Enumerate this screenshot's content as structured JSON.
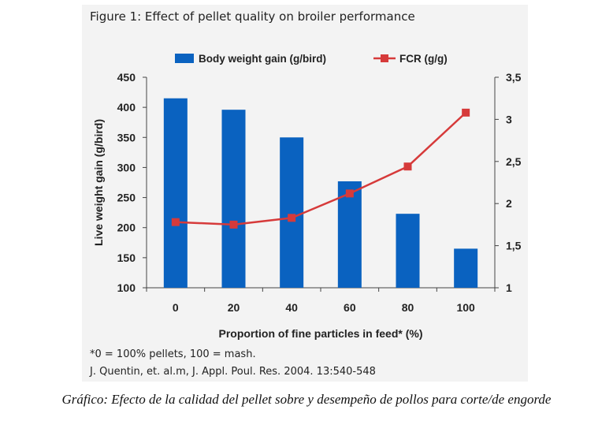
{
  "figure_title": "Figure 1: Effect of pellet quality on broiler performance",
  "footnote": "*0 = 100% pellets, 100 = mash.",
  "reference": "J. Quentin, et. al.m, J. Appl. Poul. Res. 2004. 13:540-548",
  "caption": "Gráfico: Efecto de la calidad del pellet sobre y desempeño de pollos para corte/de engorde",
  "colors": {
    "bars": "#0a62c0",
    "line": "#d63a3a",
    "panel": "#f3f3f3"
  },
  "chart_data": {
    "type": "bar",
    "categories": [
      "0",
      "20",
      "40",
      "60",
      "80",
      "100"
    ],
    "xlabel": "Proportion of fine particles in feed* (%)",
    "ylabel": "Live weight gain (g/bird)",
    "ylim": [
      100,
      450
    ],
    "yticks": [
      "100",
      "150",
      "200",
      "250",
      "300",
      "350",
      "400",
      "450"
    ],
    "y2lim": [
      1,
      3.5
    ],
    "y2ticks": [
      "1",
      "1,5",
      "2",
      "2,5",
      "3",
      "3,5"
    ],
    "legend_position": "top",
    "grid": false,
    "series": [
      {
        "name": "Body weight gain (g/bird)",
        "type": "bar",
        "axis": "left",
        "values": [
          415,
          396,
          350,
          277,
          223,
          165
        ]
      },
      {
        "name": "FCR (g/g)",
        "type": "line",
        "axis": "right",
        "values": [
          1.78,
          1.75,
          1.83,
          2.12,
          2.44,
          3.08
        ]
      }
    ]
  }
}
